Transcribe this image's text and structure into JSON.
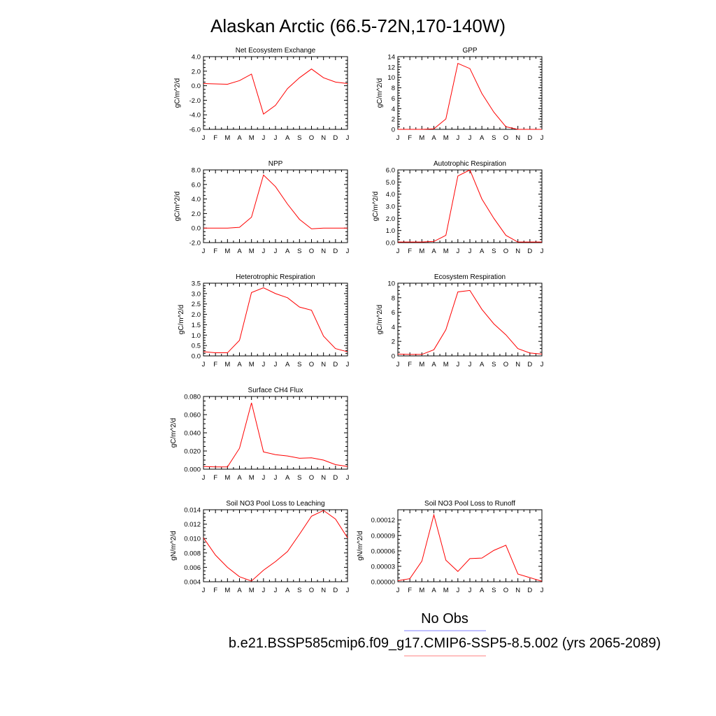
{
  "figure": {
    "title": "Alaskan Arctic (66.5-72N,170-140W)",
    "months": [
      "J",
      "F",
      "M",
      "A",
      "M",
      "J",
      "J",
      "A",
      "S",
      "O",
      "N",
      "D",
      "J"
    ],
    "line_color": "#ff0000"
  },
  "legend": {
    "items": [
      {
        "label": "No Obs",
        "color": "#8080ff"
      },
      {
        "label": "b.e21.BSSP585cmip6.f09_g17.CMIP6-SSP5-8.5.002 (yrs 2065-2089)",
        "color": "#ff8080"
      }
    ]
  },
  "chart_data": [
    {
      "type": "line",
      "title": "Net Ecosystem Exchange",
      "ylabel": "gC/m^2/d",
      "ylim": [
        -6,
        4
      ],
      "yticks": [
        -6,
        -4,
        -2,
        0,
        2,
        4
      ],
      "ytick_labels": [
        "-6.0",
        "-4.0",
        "-2.0",
        "0.0",
        "2.0",
        "4.0"
      ],
      "x": [
        1,
        2,
        3,
        4,
        5,
        6,
        7,
        8,
        9,
        10,
        11,
        12,
        13
      ],
      "values": [
        0.3,
        0.25,
        0.2,
        0.7,
        1.6,
        -3.9,
        -2.7,
        -0.4,
        1.1,
        2.3,
        1.1,
        0.5,
        0.3
      ]
    },
    {
      "type": "line",
      "title": "GPP",
      "ylabel": "gC/m^2/d",
      "ylim": [
        0,
        14
      ],
      "yticks": [
        0,
        2,
        4,
        6,
        8,
        10,
        12,
        14
      ],
      "ytick_labels": [
        "0",
        "2",
        "4",
        "6",
        "8",
        "10",
        "12",
        "14"
      ],
      "x": [
        1,
        2,
        3,
        4,
        5,
        6,
        7,
        8,
        9,
        10,
        11,
        12,
        13
      ],
      "values": [
        0,
        0,
        0,
        0.1,
        2.0,
        12.7,
        11.7,
        6.9,
        3.3,
        0.5,
        0,
        0,
        0
      ]
    },
    {
      "type": "line",
      "title": "NPP",
      "ylabel": "gC/m^2/d",
      "ylim": [
        -2,
        8
      ],
      "yticks": [
        -2,
        0,
        2,
        4,
        6,
        8
      ],
      "ytick_labels": [
        "-2.0",
        "0.0",
        "2.0",
        "4.0",
        "6.0",
        "8.0"
      ],
      "x": [
        1,
        2,
        3,
        4,
        5,
        6,
        7,
        8,
        9,
        10,
        11,
        12,
        13
      ],
      "values": [
        0,
        0,
        0,
        0.1,
        1.5,
        7.3,
        5.7,
        3.3,
        1.2,
        -0.1,
        0,
        0,
        0
      ]
    },
    {
      "type": "line",
      "title": "Autotrophic Respiration",
      "ylabel": "gC/m^2/d",
      "ylim": [
        0,
        6
      ],
      "yticks": [
        0,
        1,
        2,
        3,
        4,
        5,
        6
      ],
      "ytick_labels": [
        "0.0",
        "1.0",
        "2.0",
        "3.0",
        "4.0",
        "5.0",
        "6.0"
      ],
      "x": [
        1,
        2,
        3,
        4,
        5,
        6,
        7,
        8,
        9,
        10,
        11,
        12,
        13
      ],
      "values": [
        0.05,
        0.05,
        0.05,
        0.1,
        0.6,
        5.5,
        6.0,
        3.6,
        2.0,
        0.6,
        0.05,
        0.05,
        0.05
      ]
    },
    {
      "type": "line",
      "title": "Heterotrophic Respiration",
      "ylabel": "gC/m^2/d",
      "ylim": [
        0,
        3.5
      ],
      "yticks": [
        0,
        0.5,
        1,
        1.5,
        2,
        2.5,
        3,
        3.5
      ],
      "ytick_labels": [
        "0.0",
        "0.5",
        "1.0",
        "1.5",
        "2.0",
        "2.5",
        "3.0",
        "3.5"
      ],
      "x": [
        1,
        2,
        3,
        4,
        5,
        6,
        7,
        8,
        9,
        10,
        11,
        12,
        13
      ],
      "values": [
        0.2,
        0.15,
        0.15,
        0.75,
        3.05,
        3.28,
        3.0,
        2.8,
        2.35,
        2.2,
        0.95,
        0.35,
        0.2
      ]
    },
    {
      "type": "line",
      "title": "Ecosystem Respiration",
      "ylabel": "gC/m^2/d",
      "ylim": [
        0,
        10
      ],
      "yticks": [
        0,
        2,
        4,
        6,
        8,
        10
      ],
      "ytick_labels": [
        "0",
        "2",
        "4",
        "6",
        "8",
        "10"
      ],
      "x": [
        1,
        2,
        3,
        4,
        5,
        6,
        7,
        8,
        9,
        10,
        11,
        12,
        13
      ],
      "values": [
        0.25,
        0.2,
        0.2,
        0.85,
        3.6,
        8.8,
        9.0,
        6.4,
        4.4,
        2.9,
        1.0,
        0.4,
        0.25
      ]
    },
    {
      "type": "line",
      "title": "Surface CH4 Flux",
      "ylabel": "gC/m^2/d",
      "ylim": [
        0,
        0.08
      ],
      "yticks": [
        0,
        0.02,
        0.04,
        0.06,
        0.08
      ],
      "ytick_labels": [
        "0.000",
        "0.020",
        "0.040",
        "0.060",
        "0.080"
      ],
      "x": [
        1,
        2,
        3,
        4,
        5,
        6,
        7,
        8,
        9,
        10,
        11,
        12,
        13
      ],
      "values": [
        0.003,
        0.0025,
        0.0025,
        0.023,
        0.073,
        0.019,
        0.016,
        0.0145,
        0.012,
        0.0125,
        0.01,
        0.005,
        0.003
      ]
    },
    {
      "type": "line",
      "title": "Soil NO3 Pool Loss to Leaching",
      "ylabel": "gN/m^2/d",
      "ylim": [
        0.004,
        0.014
      ],
      "yticks": [
        0.004,
        0.006,
        0.008,
        0.01,
        0.012,
        0.014
      ],
      "ytick_labels": [
        "0.004",
        "0.006",
        "0.008",
        "0.010",
        "0.012",
        "0.014"
      ],
      "x": [
        1,
        2,
        3,
        4,
        5,
        6,
        7,
        8,
        9,
        10,
        11,
        12,
        13
      ],
      "values": [
        0.0101,
        0.0077,
        0.006,
        0.0047,
        0.0041,
        0.0056,
        0.0068,
        0.0082,
        0.0106,
        0.0131,
        0.0139,
        0.0127,
        0.0101
      ]
    },
    {
      "type": "line",
      "title": "Soil NO3 Pool Loss to Runoff",
      "ylabel": "gN/m^2/d",
      "ylim": [
        0,
        0.00014
      ],
      "yticks": [
        0,
        3e-05,
        6e-05,
        9e-05,
        0.00012
      ],
      "ytick_labels": [
        "0.00000",
        "0.00003",
        "0.00006",
        "0.00009",
        "0.00012"
      ],
      "x": [
        1,
        2,
        3,
        4,
        5,
        6,
        7,
        8,
        9,
        10,
        11,
        12,
        13
      ],
      "values": [
        2e-06,
        6e-06,
        4e-05,
        0.00013,
        4.2e-05,
        2e-05,
        4.5e-05,
        4.6e-05,
        6.1e-05,
        7.1e-05,
        1.5e-05,
        8e-06,
        1e-06
      ]
    }
  ]
}
